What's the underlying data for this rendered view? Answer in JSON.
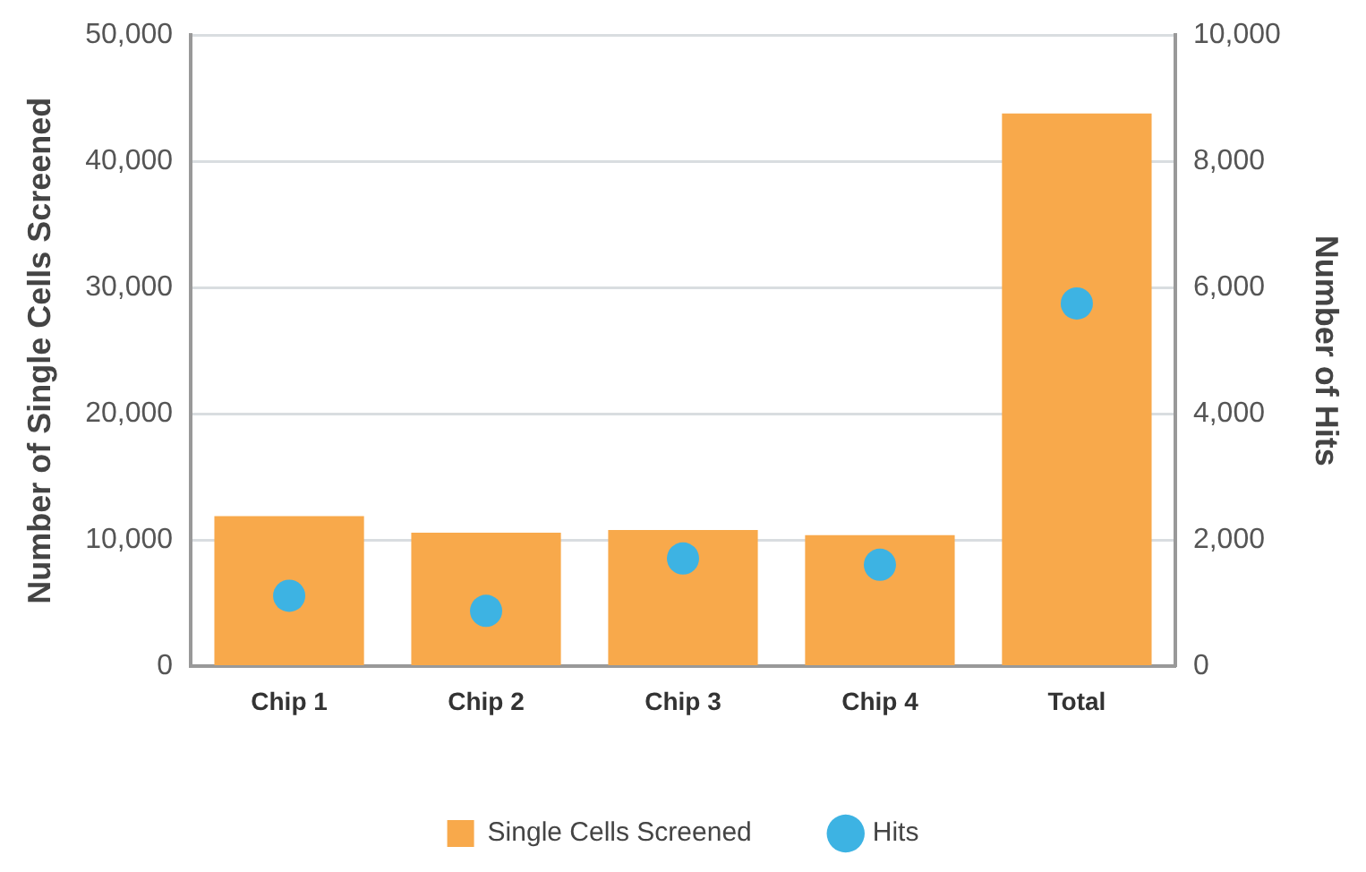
{
  "chart_data": {
    "type": "bar",
    "categories": [
      "Chip 1",
      "Chip 2",
      "Chip 3",
      "Chip 4",
      "Total"
    ],
    "series": [
      {
        "name": "Single Cells Screened",
        "color": "#f8a94b",
        "values": [
          11900,
          10600,
          10800,
          10400,
          43800
        ]
      },
      {
        "name": "Hits",
        "type": "scatter",
        "axis": "y2",
        "x": [
          "Chip 1",
          "Chip 2",
          "Chip 3",
          "Chip 4",
          "Total"
        ],
        "color": "#3db3e3",
        "values": [
          1120,
          880,
          1710,
          1610,
          5750
        ]
      }
    ],
    "ylabel": "Number of Single Cells Screened",
    "y2label": "Number of Hits",
    "ylim": [
      0,
      50000
    ],
    "yticks": [
      0,
      {
        "value": 10000,
        "label": "10,000"
      },
      {
        "value": 20000,
        "label": "20,000"
      },
      {
        "value": 30000,
        "label": "30,000"
      },
      {
        "value": 40000,
        "label": "40,000"
      },
      {
        "value": 50000,
        "label": "50,000"
      }
    ],
    "y2lim": [
      0,
      10000
    ],
    "y2ticks": [
      0,
      {
        "value": 2000,
        "label": "2,000"
      },
      {
        "value": 4000,
        "label": "4,000"
      },
      {
        "value": 6000,
        "label": "6,000"
      },
      {
        "value": 8000,
        "label": "8,000"
      },
      {
        "value": 10000,
        "label": "10,000"
      }
    ],
    "grid": "y",
    "legend": "bottom",
    "marker": "circle"
  }
}
